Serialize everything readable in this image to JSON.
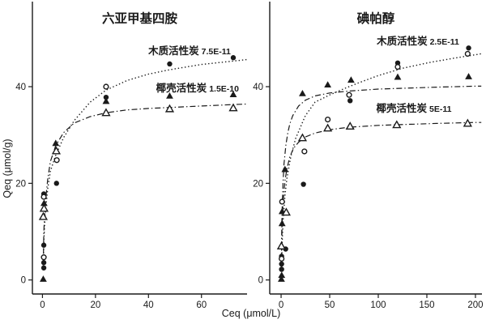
{
  "figure": {
    "background": "#ffffff",
    "ink": "#1a1a1a",
    "x_axis_label": "Ceq (μmol/L)",
    "y_axis_label": "Qeq (μmol/g)"
  },
  "chart_data": [
    {
      "type": "scatter",
      "name": "panel-hexamethylenetetramine",
      "title": "六亚甲基四胺",
      "xlabel": "Ceq (μmol/L)",
      "ylabel": "Qeq (μmol/g)",
      "xlim": [
        -3.8,
        77.2
      ],
      "ylim": [
        -2.9,
        57.6
      ],
      "x_ticks": [
        0,
        20,
        40,
        60
      ],
      "y_ticks": [
        0,
        20,
        40
      ],
      "grid": false,
      "legend_position": "annotations-on-plot",
      "annotations": [
        {
          "label": "木质活性炭",
          "value": "7.5E-11",
          "x": 55.5,
          "y": 46.7
        },
        {
          "label": "椰壳活性炭",
          "value": "1.5E-10",
          "x": 58.5,
          "y": 39.0
        }
      ],
      "series": [
        {
          "id": "lignin-ac-filled-circle",
          "marker": "circle-filled",
          "points": [
            [
              0.5,
              17.8
            ],
            [
              0.5,
              7.2
            ],
            [
              0.5,
              3.6
            ],
            [
              0.5,
              2.5
            ],
            [
              5.3,
              20.0
            ],
            [
              24,
              37.8
            ],
            [
              48,
              44.7
            ],
            [
              72,
              46.0
            ]
          ]
        },
        {
          "id": "lignin-ac-open-circle",
          "marker": "circle-open",
          "points": [
            [
              0.5,
              17.2
            ],
            [
              0.5,
              4.7
            ],
            [
              5.4,
              24.8
            ],
            [
              24,
              40.0
            ]
          ]
        },
        {
          "id": "coconut-ac-filled-triangle",
          "marker": "triangle-filled",
          "points": [
            [
              0.3,
              0.2
            ],
            [
              0.6,
              15.9
            ],
            [
              5.0,
              28.3
            ],
            [
              24,
              37.0
            ],
            [
              48,
              38.1
            ],
            [
              72,
              38.4
            ]
          ]
        },
        {
          "id": "coconut-ac-open-triangle",
          "marker": "triangle-open",
          "points": [
            [
              0.3,
              13.1
            ],
            [
              0.6,
              14.8
            ],
            [
              5.2,
              26.7
            ],
            [
              24,
              34.6
            ],
            [
              48,
              35.4
            ],
            [
              72,
              35.6
            ]
          ]
        }
      ],
      "curves": [
        {
          "id": "lignin-ac-fit",
          "style": "dotted",
          "points": [
            [
              0.3,
              2
            ],
            [
              0.5,
              8
            ],
            [
              1,
              13.5
            ],
            [
              2,
              19
            ],
            [
              3,
              22.5
            ],
            [
              5,
              25.8
            ],
            [
              8,
              29.5
            ],
            [
              12,
              33
            ],
            [
              18,
              36.8
            ],
            [
              24,
              39.3
            ],
            [
              32,
              41.3
            ],
            [
              40,
              42.6
            ],
            [
              48,
              43.5
            ],
            [
              60,
              44.6
            ],
            [
              72,
              45.3
            ],
            [
              77,
              45.6
            ]
          ]
        },
        {
          "id": "coconut-ac-fit",
          "style": "dashdot",
          "points": [
            [
              0.3,
              3
            ],
            [
              0.5,
              10
            ],
            [
              1,
              15.5
            ],
            [
              2,
              21
            ],
            [
              3,
              24.5
            ],
            [
              5,
              27.8
            ],
            [
              8,
              30.5
            ],
            [
              12,
              32.5
            ],
            [
              18,
              33.8
            ],
            [
              24,
              34.6
            ],
            [
              32,
              35.2
            ],
            [
              40,
              35.5
            ],
            [
              48,
              35.7
            ],
            [
              60,
              36.0
            ],
            [
              72,
              36.3
            ],
            [
              77,
              36.4
            ]
          ]
        }
      ]
    },
    {
      "type": "scatter",
      "name": "panel-iopamidol",
      "title": "碘帕醇",
      "xlabel": "Ceq (μmol/L)",
      "ylabel": "Qeq (μmol/g)",
      "xlim": [
        -11.7,
        206.7
      ],
      "ylim": [
        -2.9,
        57.6
      ],
      "x_ticks": [
        0,
        50,
        100,
        150,
        200
      ],
      "y_ticks": [
        0,
        20,
        40
      ],
      "grid": false,
      "legend_position": "annotations-on-plot",
      "annotations": [
        {
          "label": "木质活性炭",
          "value": "2.5E-11",
          "x": 140.8,
          "y": 48.7
        },
        {
          "label": "椰壳活性炭",
          "value": "5E-11",
          "x": 136.7,
          "y": 34.8
        }
      ],
      "series": [
        {
          "id": "lignin-ac-filled-circle",
          "marker": "circle-filled",
          "points": [
            [
              0.5,
              4.9
            ],
            [
              0.5,
              3.3
            ],
            [
              0.5,
              2.2
            ],
            [
              4.7,
              6.4
            ],
            [
              23,
              19.8
            ],
            [
              71,
              37.1
            ],
            [
              120,
              44.9
            ],
            [
              193,
              48.0
            ]
          ]
        },
        {
          "id": "lignin-ac-open-circle",
          "marker": "circle-open",
          "points": [
            [
              0.5,
              4.4
            ],
            [
              1.0,
              16.2
            ],
            [
              24,
              26.6
            ],
            [
              48,
              33.2
            ],
            [
              70,
              38.3
            ],
            [
              120,
              44.1
            ],
            [
              192,
              46.8
            ]
          ]
        },
        {
          "id": "coconut-ac-filled-triangle",
          "marker": "triangle-filled",
          "points": [
            [
              0.3,
              0.2
            ],
            [
              0.6,
              1.0
            ],
            [
              1.0,
              11.7
            ],
            [
              1.1,
              14.2
            ],
            [
              4.0,
              22.9
            ],
            [
              22,
              38.6
            ],
            [
              48,
              40.4
            ],
            [
              72,
              41.4
            ],
            [
              120,
              42.0
            ],
            [
              193,
              42.1
            ]
          ]
        },
        {
          "id": "coconut-ac-open-triangle",
          "marker": "triangle-open",
          "points": [
            [
              0.3,
              7.0
            ],
            [
              5.3,
              14.0
            ],
            [
              22,
              29.4
            ],
            [
              48,
              31.4
            ],
            [
              71,
              31.8
            ],
            [
              119,
              32.1
            ],
            [
              192,
              32.4
            ]
          ]
        }
      ],
      "curves": [
        {
          "id": "lignin-ac-fit",
          "style": "dotted",
          "points": [
            [
              0.5,
              2
            ],
            [
              1,
              7
            ],
            [
              2,
              12
            ],
            [
              4,
              17.5
            ],
            [
              6,
              21
            ],
            [
              10,
              25.5
            ],
            [
              15,
              29.3
            ],
            [
              25,
              34
            ],
            [
              35,
              36.8
            ],
            [
              50,
              38.3
            ],
            [
              65,
              39.6
            ],
            [
              80,
              40.8
            ],
            [
              100,
              42.3
            ],
            [
              125,
              43.8
            ],
            [
              150,
              44.9
            ],
            [
              175,
              45.8
            ],
            [
              200,
              46.6
            ],
            [
              206,
              46.8
            ]
          ]
        },
        {
          "id": "coconut-ac-fit-upper",
          "style": "dashdot",
          "points": [
            [
              0.3,
              2
            ],
            [
              0.5,
              8
            ],
            [
              1,
              14
            ],
            [
              2,
              20
            ],
            [
              3,
              24
            ],
            [
              5,
              28
            ],
            [
              7,
              30.5
            ],
            [
              9,
              32.3
            ],
            [
              12,
              34
            ],
            [
              18,
              36
            ],
            [
              25,
              37.2
            ],
            [
              35,
              38.1
            ],
            [
              50,
              38.7
            ],
            [
              70,
              39.1
            ],
            [
              100,
              39.5
            ],
            [
              130,
              39.7
            ],
            [
              160,
              39.9
            ],
            [
              200,
              40.1
            ],
            [
              206,
              40.1
            ]
          ]
        },
        {
          "id": "coconut-ac-fit-lower",
          "style": "dashdot",
          "points": [
            [
              0.3,
              2
            ],
            [
              0.5,
              6
            ],
            [
              1,
              11
            ],
            [
              2,
              16
            ],
            [
              4,
              20.5
            ],
            [
              6,
              23
            ],
            [
              9,
              25.5
            ],
            [
              13,
              27.3
            ],
            [
              18,
              28.5
            ],
            [
              25,
              29.6
            ],
            [
              35,
              30.4
            ],
            [
              50,
              31.1
            ],
            [
              70,
              31.6
            ],
            [
              100,
              32.0
            ],
            [
              130,
              32.2
            ],
            [
              160,
              32.4
            ],
            [
              200,
              32.6
            ],
            [
              206,
              32.6
            ]
          ]
        }
      ]
    }
  ]
}
